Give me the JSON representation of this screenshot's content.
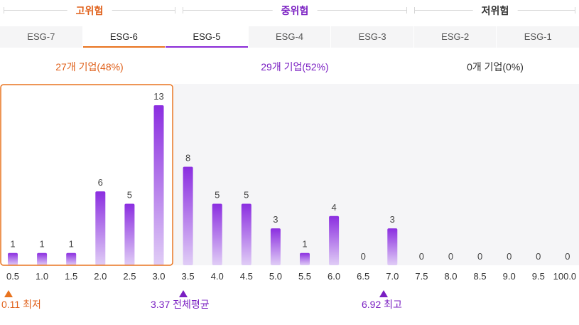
{
  "risk_groups": [
    {
      "label": "고위험",
      "color": "#e0601a"
    },
    {
      "label": "중위험",
      "color": "#7a1fc2"
    },
    {
      "label": "저위험",
      "color": "#333333"
    }
  ],
  "tabs": [
    "ESG-7",
    "ESG-6",
    "ESG-5",
    "ESG-4",
    "ESG-3",
    "ESG-2",
    "ESG-1"
  ],
  "counts": [
    {
      "text": "27개 기업(48%)",
      "color": "#e0601a"
    },
    {
      "text": "29개 기업(52%)",
      "color": "#7a1fc2"
    },
    {
      "text": "0개 기업(0%)",
      "color": "#333333"
    }
  ],
  "chart_data": {
    "type": "bar",
    "categories": [
      "0.5",
      "1.0",
      "1.5",
      "2.0",
      "2.5",
      "3.0",
      "3.5",
      "4.0",
      "4.5",
      "5.0",
      "5.5",
      "6.0",
      "6.5",
      "7.0",
      "7.5",
      "8.0",
      "8.5",
      "9.0",
      "9.5",
      "100.0"
    ],
    "values": [
      1,
      1,
      1,
      6,
      5,
      13,
      8,
      5,
      5,
      3,
      1,
      4,
      0,
      3,
      0,
      0,
      0,
      0,
      0,
      0
    ],
    "ylim": [
      0,
      13
    ],
    "highlight_range": [
      "0.5",
      "3.0"
    ],
    "colors": {
      "bar_top": "#8b2ee0",
      "bar_bottom": "#e0cdf6",
      "highlight": "#e8731f",
      "plot_bg": "#f5f5f7"
    }
  },
  "markers": [
    {
      "label": "0.11 최저",
      "color": "#e0601a"
    },
    {
      "label": "3.37 전체평균",
      "color": "#7a1fc2"
    },
    {
      "label": "6.92 최고",
      "color": "#7a1fc2"
    }
  ]
}
